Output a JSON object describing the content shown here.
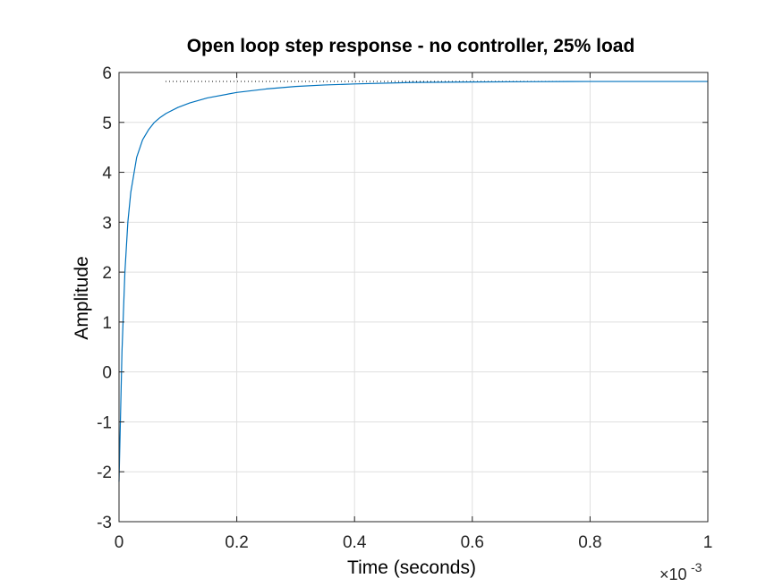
{
  "chart_data": {
    "type": "line",
    "title": "Open loop step response - no controller, 25% load",
    "xlabel": "Time (seconds)",
    "ylabel": "Amplitude",
    "x_multiplier_label": {
      "base": "×10",
      "exponent": "-3"
    },
    "xlim": [
      0,
      0.001
    ],
    "ylim": [
      -3,
      6
    ],
    "x_ticks": [
      0,
      0.0002,
      0.0004,
      0.0006,
      0.0008,
      0.001
    ],
    "x_tick_labels": [
      "0",
      "0.2",
      "0.4",
      "0.6",
      "0.8",
      "1"
    ],
    "y_ticks": [
      -3,
      -2,
      -1,
      0,
      1,
      2,
      3,
      4,
      5,
      6
    ],
    "y_tick_labels": [
      "-3",
      "-2",
      "-1",
      "0",
      "1",
      "2",
      "3",
      "4",
      "5",
      "6"
    ],
    "grid": true,
    "steady_state_value": 5.82,
    "series": [
      {
        "color": "#0072BD",
        "x": [
          0,
          5e-06,
          1e-05,
          1.5e-05,
          2e-05,
          3e-05,
          4e-05,
          5e-05,
          6e-05,
          7e-05,
          8e-05,
          0.0001,
          0.00012,
          0.00015,
          0.0002,
          0.00025,
          0.0003,
          0.00035,
          0.0004,
          0.0005,
          0.0006,
          0.0007,
          0.0008,
          0.0009,
          0.001
        ],
        "y": [
          -2.2,
          0.4,
          2.0,
          3.0,
          3.6,
          4.3,
          4.65,
          4.85,
          5.0,
          5.1,
          5.18,
          5.3,
          5.39,
          5.49,
          5.6,
          5.67,
          5.72,
          5.75,
          5.77,
          5.8,
          5.81,
          5.815,
          5.82,
          5.82,
          5.82
        ]
      }
    ],
    "reference_line": {
      "style": "dotted",
      "color": "#000000"
    }
  }
}
